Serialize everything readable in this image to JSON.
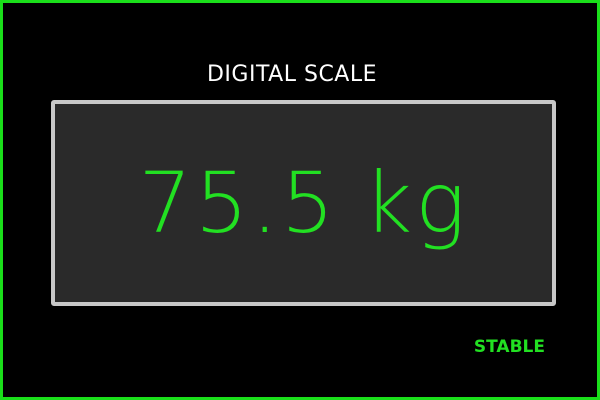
{
  "app": {
    "title": "DIGITAL SCALE"
  },
  "display": {
    "value": "75.5",
    "unit": "kg"
  },
  "status": {
    "label": "STABLE"
  },
  "colors": {
    "frame": "#1adf1a",
    "background": "#000000",
    "display_background": "#2a2a2a",
    "display_border": "#c8c8c8",
    "reading": "#22e022",
    "title": "#ffffff",
    "status": "#22e022"
  }
}
